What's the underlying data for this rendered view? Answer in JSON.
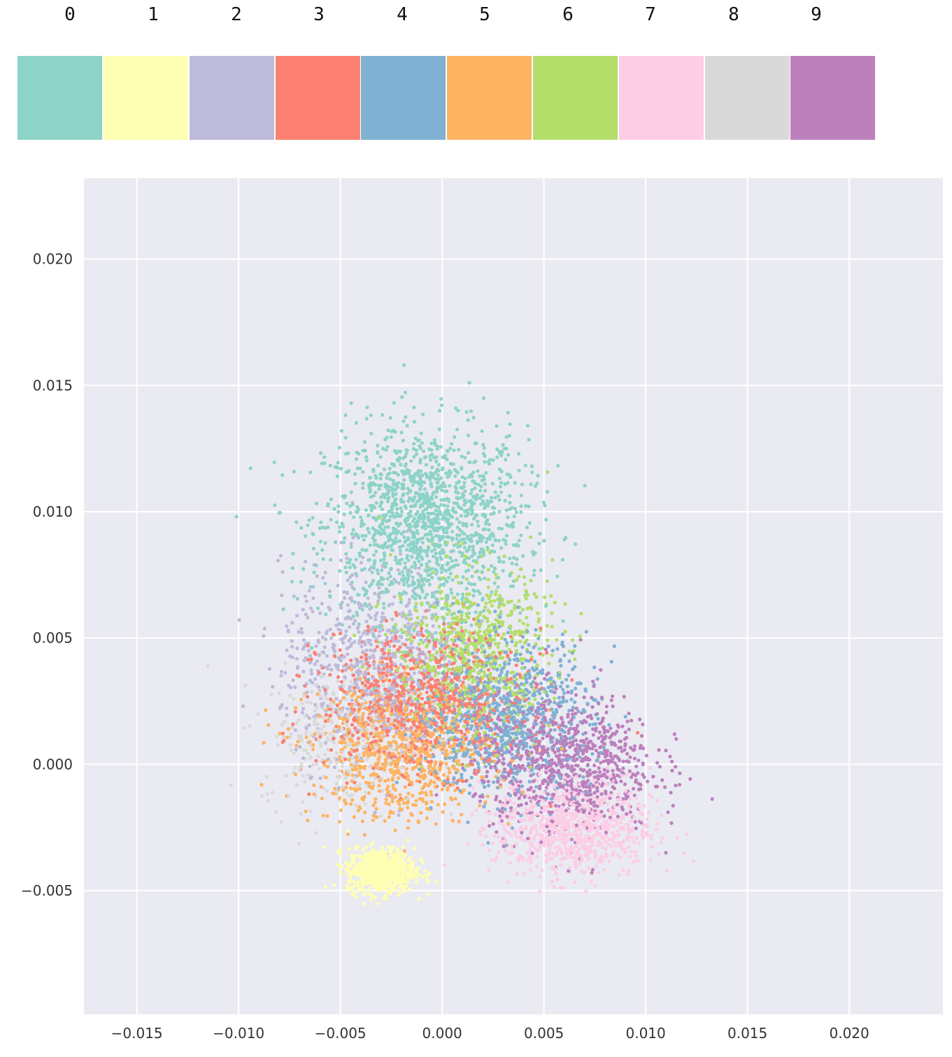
{
  "legend": {
    "labels": [
      "0",
      "1",
      "2",
      "3",
      "4",
      "5",
      "6",
      "7",
      "8",
      "9"
    ],
    "colors": [
      "#8dd3c7",
      "#ffffb3",
      "#bebada",
      "#fb8072",
      "#80b1d3",
      "#fdb462",
      "#b3de69",
      "#fccde5",
      "#d9d9d9",
      "#bc80bd"
    ]
  },
  "chart_data": {
    "type": "scatter",
    "title": "",
    "xlabel": "",
    "ylabel": "",
    "xlim": [
      -0.0176,
      0.0246
    ],
    "ylim": [
      -0.0099,
      0.0232
    ],
    "xticks": [
      -0.015,
      -0.01,
      -0.005,
      0.0,
      0.005,
      0.01,
      0.015,
      0.02
    ],
    "xtick_labels": [
      "−0.015",
      "−0.010",
      "−0.005",
      "0.000",
      "0.005",
      "0.010",
      "0.015",
      "0.020"
    ],
    "yticks": [
      -0.005,
      0.0,
      0.005,
      0.01,
      0.015,
      0.02
    ],
    "ytick_labels": [
      "−0.005",
      "0.000",
      "0.005",
      "0.010",
      "0.015",
      "0.020"
    ],
    "grid": true,
    "background": "#eaeaf2",
    "series": [
      {
        "name": "0",
        "color": "#8dd3c7",
        "center": [
          -0.0008,
          0.0095
        ],
        "spread": [
          0.0045,
          0.0035
        ],
        "count": 1500
      },
      {
        "name": "1",
        "color": "#ffffb3",
        "center": [
          -0.003,
          -0.0042
        ],
        "spread": [
          0.0015,
          0.0008
        ],
        "count": 700
      },
      {
        "name": "2",
        "color": "#bebada",
        "center": [
          -0.0035,
          0.004
        ],
        "spread": [
          0.004,
          0.0035
        ],
        "count": 700
      },
      {
        "name": "3",
        "color": "#fb8072",
        "center": [
          -0.001,
          0.0025
        ],
        "spread": [
          0.0045,
          0.0025
        ],
        "count": 900
      },
      {
        "name": "4",
        "color": "#80b1d3",
        "center": [
          0.003,
          0.002
        ],
        "spread": [
          0.004,
          0.0028
        ],
        "count": 900
      },
      {
        "name": "5",
        "color": "#fdb462",
        "center": [
          -0.002,
          0.0005
        ],
        "spread": [
          0.004,
          0.0025
        ],
        "count": 800
      },
      {
        "name": "6",
        "color": "#b3de69",
        "center": [
          0.0015,
          0.0045
        ],
        "spread": [
          0.0035,
          0.003
        ],
        "count": 700
      },
      {
        "name": "7",
        "color": "#fccde5",
        "center": [
          0.0065,
          -0.0025
        ],
        "spread": [
          0.0035,
          0.0018
        ],
        "count": 800
      },
      {
        "name": "8",
        "color": "#d9d9d9",
        "center": [
          -0.005,
          0.001
        ],
        "spread": [
          0.0035,
          0.0025
        ],
        "count": 300
      },
      {
        "name": "9",
        "color": "#bc80bd",
        "center": [
          0.006,
          0.0
        ],
        "spread": [
          0.004,
          0.0025
        ],
        "count": 900
      }
    ]
  }
}
